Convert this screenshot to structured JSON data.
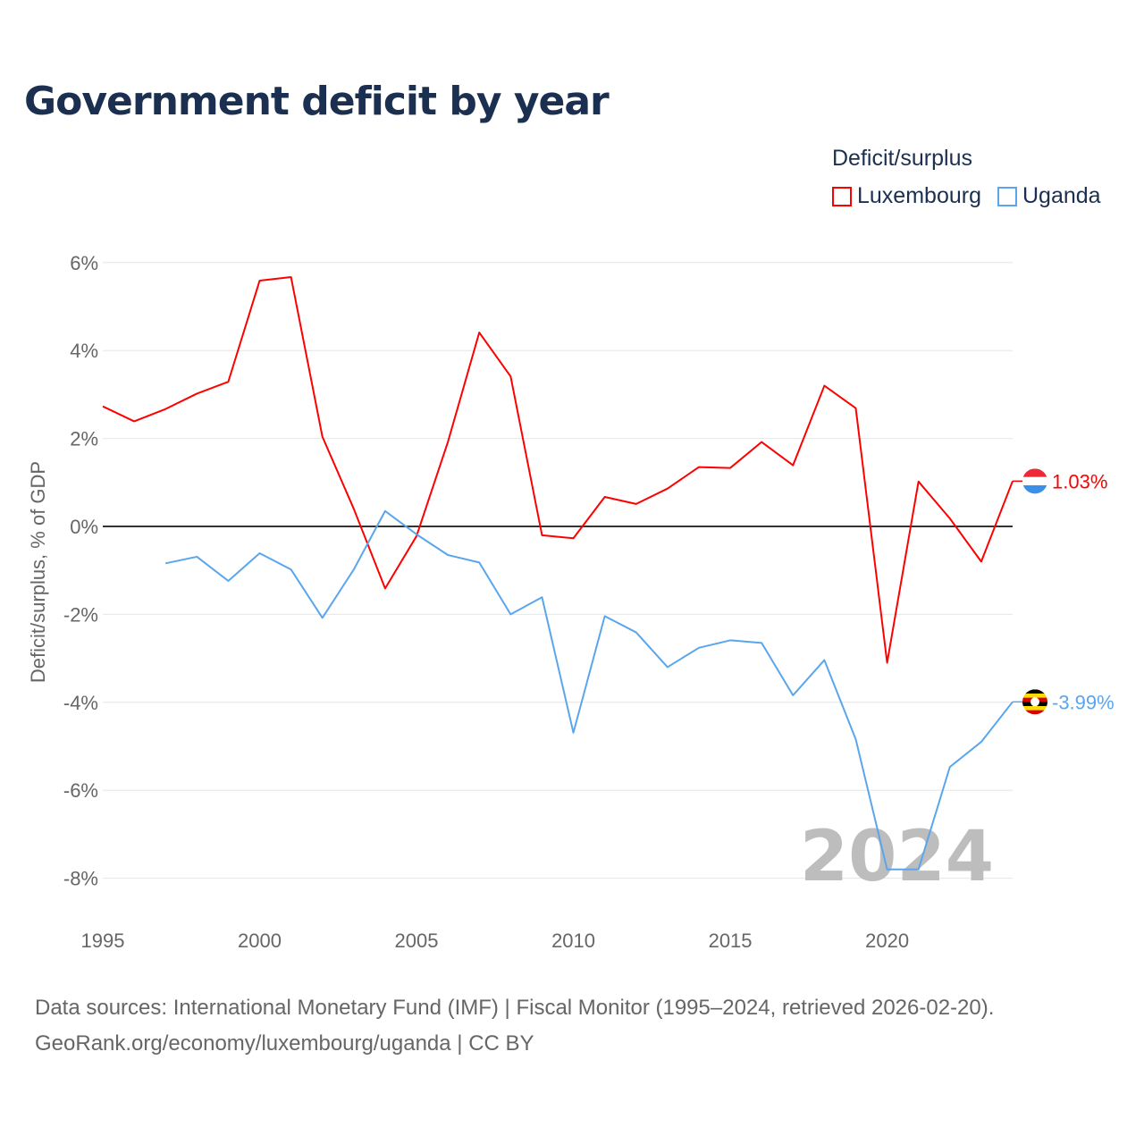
{
  "title": "Government deficit by year",
  "legend_title": "Deficit/surplus",
  "source_line1": "Data sources: International Monetary Fund (IMF) | Fiscal Monitor (1995–2024, retrieved 2026-02-20).",
  "source_line2": "GeoRank.org/economy/luxembourg/uganda | CC BY",
  "chart_data": {
    "type": "line",
    "title": "Government deficit by year",
    "xlabel": "",
    "ylabel": "Deficit/surplus, % of GDP",
    "xlim": [
      1995,
      2024
    ],
    "ylim": [
      -8.8,
      6.2
    ],
    "x_ticks": [
      1995,
      2000,
      2005,
      2010,
      2015,
      2020
    ],
    "x_tick_labels": [
      "1995",
      "2000",
      "2005",
      "2010",
      "2015",
      "2020"
    ],
    "y_ticks": [
      -8,
      -6,
      -4,
      -2,
      0,
      2,
      4,
      6
    ],
    "y_tick_labels": [
      "-8%",
      "-6%",
      "-4%",
      "-2%",
      "0%",
      "2%",
      "4%",
      "6%"
    ],
    "grid": true,
    "legend_placement": "top-right",
    "watermark_year": "2024",
    "series": [
      {
        "name": "Luxembourg",
        "color": "#ff0000",
        "end_label": "1.03%",
        "x": [
          1995,
          1996,
          1997,
          1998,
          1999,
          2000,
          2001,
          2002,
          2003,
          2004,
          2005,
          2006,
          2007,
          2008,
          2009,
          2010,
          2011,
          2012,
          2013,
          2014,
          2015,
          2016,
          2017,
          2018,
          2019,
          2020,
          2021,
          2022,
          2023,
          2024
        ],
        "values": [
          2.73,
          2.39,
          2.67,
          3.02,
          3.29,
          5.59,
          5.67,
          2.04,
          0.4,
          -1.41,
          -0.22,
          1.92,
          4.41,
          3.41,
          -0.2,
          -0.27,
          0.67,
          0.51,
          0.86,
          1.35,
          1.33,
          1.92,
          1.39,
          3.2,
          2.69,
          -3.1,
          1.02,
          0.18,
          -0.8,
          1.03
        ]
      },
      {
        "name": "Uganda",
        "color": "#5aa6ec",
        "end_label": "-3.99%",
        "x": [
          1997,
          1998,
          1999,
          2000,
          2001,
          2002,
          2003,
          2004,
          2005,
          2006,
          2007,
          2008,
          2009,
          2010,
          2011,
          2012,
          2013,
          2014,
          2015,
          2016,
          2017,
          2018,
          2019,
          2020,
          2021,
          2022,
          2023,
          2024
        ],
        "values": [
          -0.84,
          -0.69,
          -1.24,
          -0.61,
          -0.98,
          -2.08,
          -0.98,
          0.35,
          -0.18,
          -0.65,
          -0.82,
          -2.0,
          -1.61,
          -4.69,
          -2.04,
          -2.41,
          -3.2,
          -2.76,
          -2.59,
          -2.65,
          -3.84,
          -3.04,
          -4.84,
          -7.8,
          -7.8,
          -5.47,
          -4.9,
          -3.99
        ]
      }
    ]
  }
}
